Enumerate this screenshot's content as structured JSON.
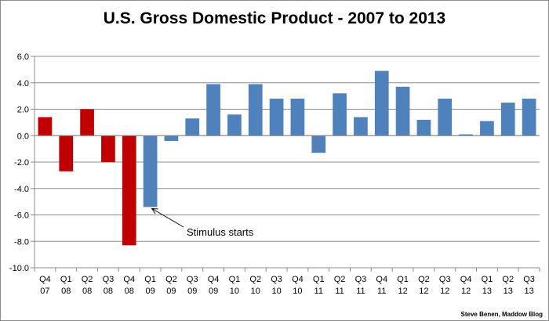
{
  "chart_data": {
    "type": "bar",
    "title": "U.S. Gross Domestic Product - 2007 to 2013",
    "xlabel": "",
    "ylabel": "",
    "ylim": [
      -10,
      6
    ],
    "yticks": [
      "6.0",
      "4.0",
      "2.0",
      "0.0",
      "-2.0",
      "-4.0",
      "-6.0",
      "-8.0",
      "-10.0"
    ],
    "grid": true,
    "legend": "none",
    "categories": [
      [
        "Q4",
        "07"
      ],
      [
        "Q1",
        "08"
      ],
      [
        "Q2",
        "08"
      ],
      [
        "Q3",
        "08"
      ],
      [
        "Q4",
        "08"
      ],
      [
        "Q1",
        "09"
      ],
      [
        "Q2",
        "09"
      ],
      [
        "Q3",
        "09"
      ],
      [
        "Q4",
        "09"
      ],
      [
        "Q1",
        "10"
      ],
      [
        "Q2",
        "10"
      ],
      [
        "Q3",
        "10"
      ],
      [
        "Q4",
        "10"
      ],
      [
        "Q1",
        "11"
      ],
      [
        "Q2",
        "11"
      ],
      [
        "Q3",
        "11"
      ],
      [
        "Q4",
        "11"
      ],
      [
        "Q1",
        "12"
      ],
      [
        "Q2",
        "12"
      ],
      [
        "Q3",
        "12"
      ],
      [
        "Q4",
        "12"
      ],
      [
        "Q1",
        "13"
      ],
      [
        "Q2",
        "13"
      ],
      [
        "Q3",
        "13"
      ]
    ],
    "values": [
      1.4,
      -2.7,
      2.0,
      -2.0,
      -8.3,
      -5.4,
      -0.4,
      1.3,
      3.9,
      1.6,
      3.9,
      2.8,
      2.8,
      -1.3,
      3.2,
      1.4,
      4.9,
      3.7,
      1.2,
      2.8,
      0.1,
      1.1,
      2.5,
      2.8
    ],
    "bar_colors": [
      "#c00000",
      "#c00000",
      "#c00000",
      "#c00000",
      "#c00000",
      "#4f81bd",
      "#4f81bd",
      "#4f81bd",
      "#4f81bd",
      "#4f81bd",
      "#4f81bd",
      "#4f81bd",
      "#4f81bd",
      "#4f81bd",
      "#4f81bd",
      "#4f81bd",
      "#4f81bd",
      "#4f81bd",
      "#4f81bd",
      "#4f81bd",
      "#4f81bd",
      "#4f81bd",
      "#4f81bd",
      "#4f81bd"
    ],
    "annotation": {
      "text": "Stimulus starts",
      "category_index": 5
    }
  },
  "credit": "Steve Benen, Maddow Blog"
}
